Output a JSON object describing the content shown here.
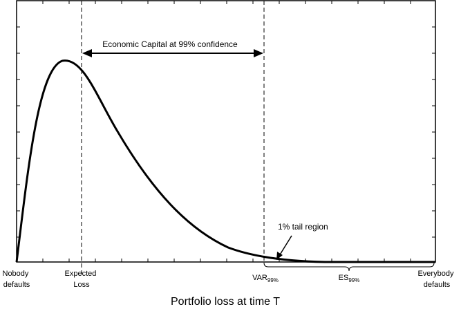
{
  "diagram": {
    "axis_title": "Portfolio loss at time T",
    "labels": {
      "nobody_line1": "Nobody",
      "nobody_line2": "defaults",
      "expected_line1": "Expected",
      "expected_line2": "Loss",
      "var_main": "VAR",
      "var_sub": "99%",
      "es_main": "ES",
      "es_sub": "99%",
      "everybody_line1": "Everybody",
      "everybody_line2": "defaults"
    },
    "economic_capital_label": "Economic Capital at 99% confidence",
    "tail_label": "1% tail region",
    "colors": {
      "line": "#000000",
      "background": "#ffffff"
    }
  }
}
